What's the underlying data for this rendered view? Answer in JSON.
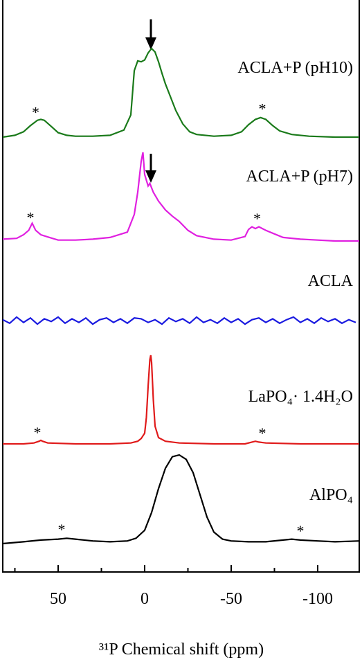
{
  "chart_data": {
    "type": "line",
    "xlabel": "³¹P Chemical shift (ppm)",
    "xlim": [
      82,
      -124
    ],
    "xticks": [
      50,
      0,
      -50,
      -100
    ],
    "xminorticks": [
      75,
      25,
      -25,
      -75
    ],
    "series": [
      {
        "name": "ACLA+P (pH10)",
        "color": "#1a7a1a",
        "x": [
          82,
          75,
          70,
          66,
          62,
          60,
          58,
          54,
          50,
          45,
          40,
          30,
          20,
          12,
          8,
          6,
          4,
          2,
          0,
          -2,
          -4,
          -6,
          -8,
          -10,
          -12,
          -15,
          -18,
          -22,
          -26,
          -30,
          -40,
          -50,
          -56,
          -60,
          -64,
          -67,
          -70,
          -74,
          -78,
          -85,
          -95,
          -110,
          -124
        ],
        "values": [
          0,
          0.02,
          0.06,
          0.13,
          0.19,
          0.2,
          0.19,
          0.12,
          0.05,
          0.02,
          0.01,
          0.01,
          0.02,
          0.08,
          0.25,
          0.75,
          0.86,
          0.85,
          0.87,
          0.95,
          1.0,
          0.96,
          0.85,
          0.72,
          0.6,
          0.45,
          0.3,
          0.15,
          0.06,
          0.03,
          0.01,
          0.02,
          0.06,
          0.14,
          0.2,
          0.22,
          0.2,
          0.13,
          0.07,
          0.03,
          0.01,
          0,
          0
        ],
        "annotations": [
          {
            "text": "*",
            "x": 63
          },
          {
            "text": "*",
            "x": -68
          }
        ]
      },
      {
        "name": "ACLA+P (pH7)",
        "color": "#e020e0",
        "x": [
          82,
          74,
          70,
          67,
          65,
          63,
          60,
          55,
          50,
          40,
          30,
          20,
          10,
          6,
          4,
          2,
          1,
          0,
          -2,
          -3,
          -5,
          -8,
          -12,
          -16,
          -20,
          -25,
          -30,
          -40,
          -50,
          -58,
          -60,
          -62,
          -64,
          -66,
          -70,
          -75,
          -80,
          -90,
          -100,
          -110,
          -124
        ],
        "values": [
          0.02,
          0.03,
          0.07,
          0.12,
          0.2,
          0.12,
          0.07,
          0.04,
          0.01,
          0.01,
          0.02,
          0.04,
          0.1,
          0.3,
          0.55,
          0.9,
          1.0,
          0.75,
          0.62,
          0.65,
          0.55,
          0.45,
          0.35,
          0.28,
          0.22,
          0.12,
          0.06,
          0.02,
          0.01,
          0.05,
          0.13,
          0.16,
          0.14,
          0.16,
          0.12,
          0.08,
          0.04,
          0.02,
          0.01,
          0,
          0
        ],
        "annotations": [
          {
            "text": "*",
            "x": 66
          },
          {
            "text": "*",
            "x": -65
          }
        ]
      },
      {
        "name": "ACLA",
        "color": "#1a1ae0",
        "x": [
          82,
          78,
          74,
          70,
          66,
          62,
          58,
          54,
          50,
          46,
          42,
          38,
          34,
          30,
          26,
          22,
          18,
          14,
          10,
          6,
          2,
          -2,
          -6,
          -10,
          -14,
          -18,
          -22,
          -26,
          -30,
          -34,
          -38,
          -42,
          -46,
          -50,
          -54,
          -58,
          -62,
          -66,
          -70,
          -74,
          -78,
          -82,
          -86,
          -90,
          -94,
          -98,
          -102,
          -106,
          -110,
          -114,
          -118,
          -122
        ],
        "values": [
          0.01,
          -0.03,
          0.04,
          -0.02,
          0.03,
          -0.04,
          0.02,
          -0.01,
          0.04,
          -0.03,
          0.02,
          -0.02,
          0.03,
          -0.04,
          0.01,
          0.03,
          -0.02,
          0.02,
          -0.03,
          0.03,
          0.02,
          -0.02,
          0.01,
          -0.04,
          0.03,
          -0.01,
          0.02,
          -0.03,
          0.04,
          -0.02,
          0.01,
          -0.03,
          0.03,
          -0.02,
          0.02,
          -0.04,
          0.01,
          0.03,
          -0.02,
          0.02,
          -0.03,
          0.01,
          0.04,
          -0.02,
          0.02,
          -0.03,
          0.03,
          -0.01,
          0.02,
          -0.03,
          0.01,
          -0.02
        ],
        "annotations": []
      },
      {
        "name": "LaPO₄· 1.4H₂O",
        "color": "#e01a1a",
        "x": [
          82,
          70,
          64,
          61,
          60,
          59,
          56,
          40,
          20,
          8,
          4,
          2,
          0,
          -1,
          -2,
          -3,
          -3.5,
          -4,
          -5,
          -6,
          -8,
          -12,
          -20,
          -40,
          -58,
          -62,
          -64,
          -66,
          -70,
          -90,
          -124
        ],
        "values": [
          0,
          0,
          0.01,
          0.03,
          0.04,
          0.03,
          0.01,
          0,
          0,
          0.01,
          0.03,
          0.06,
          0.12,
          0.3,
          0.65,
          0.95,
          1.0,
          0.92,
          0.5,
          0.2,
          0.07,
          0.03,
          0.01,
          0,
          0,
          0.02,
          0.03,
          0.02,
          0.01,
          0,
          0
        ],
        "annotations": [
          {
            "text": "*",
            "x": 62
          },
          {
            "text": "*",
            "x": -68
          }
        ]
      },
      {
        "name": "AlPO₄",
        "color": "#000000",
        "x": [
          82,
          70,
          60,
          50,
          45,
          40,
          30,
          20,
          10,
          5,
          0,
          -4,
          -8,
          -12,
          -16,
          -20,
          -24,
          -28,
          -32,
          -36,
          -40,
          -45,
          -50,
          -60,
          -70,
          -80,
          -85,
          -90,
          -100,
          -110,
          -124
        ],
        "values": [
          0,
          0.02,
          0.04,
          0.05,
          0.06,
          0.05,
          0.03,
          0.02,
          0.03,
          0.06,
          0.15,
          0.35,
          0.62,
          0.85,
          0.98,
          1.0,
          0.95,
          0.8,
          0.55,
          0.3,
          0.13,
          0.05,
          0.03,
          0.02,
          0.02,
          0.04,
          0.05,
          0.04,
          0.03,
          0.02,
          0.03
        ],
        "annotations": [
          {
            "text": "*",
            "x": 48
          },
          {
            "text": "*",
            "x": -90
          }
        ]
      }
    ]
  }
}
